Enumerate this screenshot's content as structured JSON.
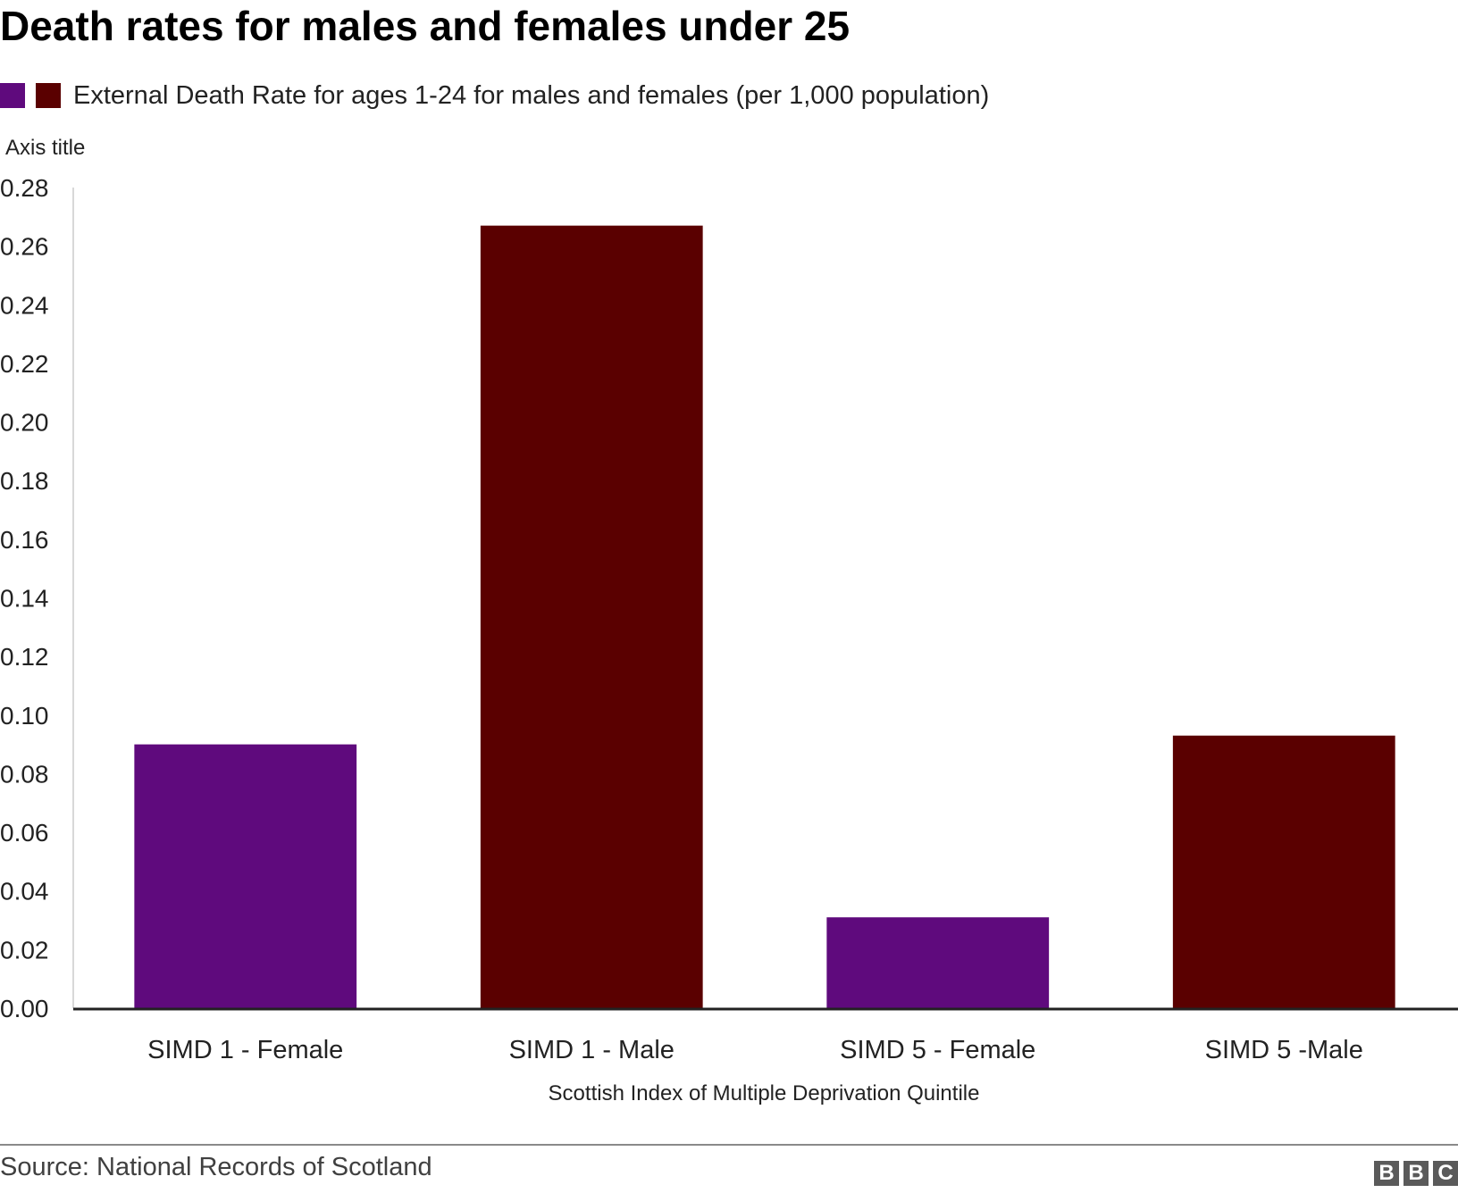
{
  "chart_data": {
    "type": "bar",
    "title": "Death rates for males and females under 25",
    "legend": {
      "placement": "top-left",
      "label": "External Death Rate for ages 1-24 for males and females (per 1,000 population)",
      "swatches": [
        "#5f0a7d",
        "#5a0000"
      ]
    },
    "ylabel": "Axis title",
    "xlabel": "Scottish Index of Multiple Deprivation Quintile",
    "categories": [
      "SIMD 1 - Female",
      "SIMD 1 - Male",
      "SIMD 5 - Female",
      "SIMD 5 -Male"
    ],
    "values": [
      0.09,
      0.267,
      0.031,
      0.093
    ],
    "bar_colors": [
      "#5f0a7d",
      "#5a0000",
      "#5f0a7d",
      "#5a0000"
    ],
    "ylim": [
      0,
      0.28
    ],
    "yticks": [
      "0.00",
      "0.02",
      "0.04",
      "0.06",
      "0.08",
      "0.10",
      "0.12",
      "0.14",
      "0.16",
      "0.18",
      "0.20",
      "0.22",
      "0.24",
      "0.26",
      "0.28"
    ],
    "grid": false
  },
  "footer": {
    "source": "Source: National Records of Scotland",
    "logo_letters": [
      "B",
      "B",
      "C"
    ]
  }
}
